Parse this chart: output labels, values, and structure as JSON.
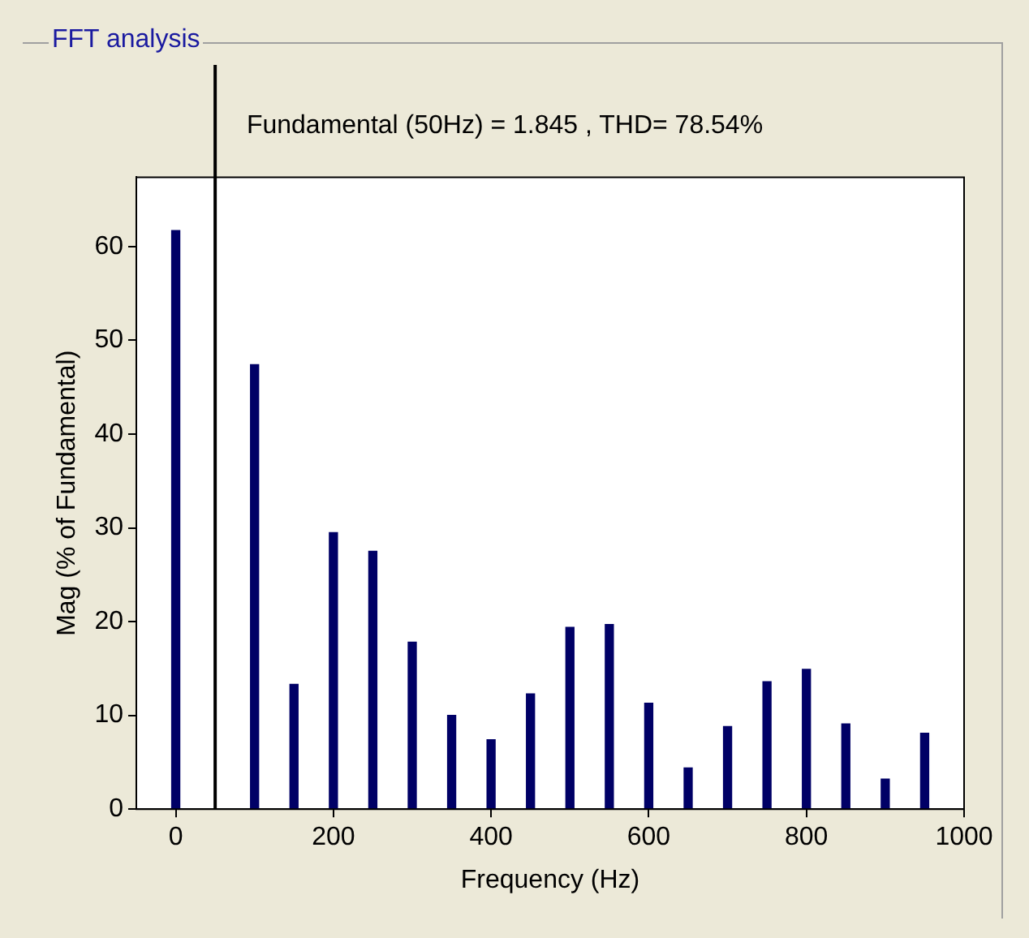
{
  "chart_data": {
    "type": "bar",
    "title": "FFT analysis",
    "subtitle": "Fundamental (50Hz) = 1.845 , THD= 78.54%",
    "xlabel": "Frequency (Hz)",
    "ylabel": "Mag (% of Fundamental)",
    "x": [
      0,
      100,
      150,
      200,
      250,
      300,
      350,
      400,
      450,
      500,
      550,
      600,
      650,
      700,
      750,
      800,
      850,
      900,
      950
    ],
    "values": [
      61.7,
      47.4,
      13.3,
      29.5,
      27.5,
      17.8,
      10,
      7.4,
      12.3,
      19.4,
      19.7,
      11.3,
      4.4,
      8.8,
      13.6,
      14.9,
      9.1,
      3.2,
      8.1
    ],
    "color": "#000066",
    "xlim": [
      -50,
      1000
    ],
    "xticks": [
      0,
      200,
      400,
      600,
      800,
      1000
    ],
    "ylim": [
      0,
      67.4
    ],
    "yticks": [
      0,
      10,
      20,
      30,
      40,
      50,
      60
    ],
    "ref_lines": [
      {
        "axis": "x",
        "value": 50,
        "color": "#000000"
      }
    ],
    "grid": false,
    "legend": false
  }
}
